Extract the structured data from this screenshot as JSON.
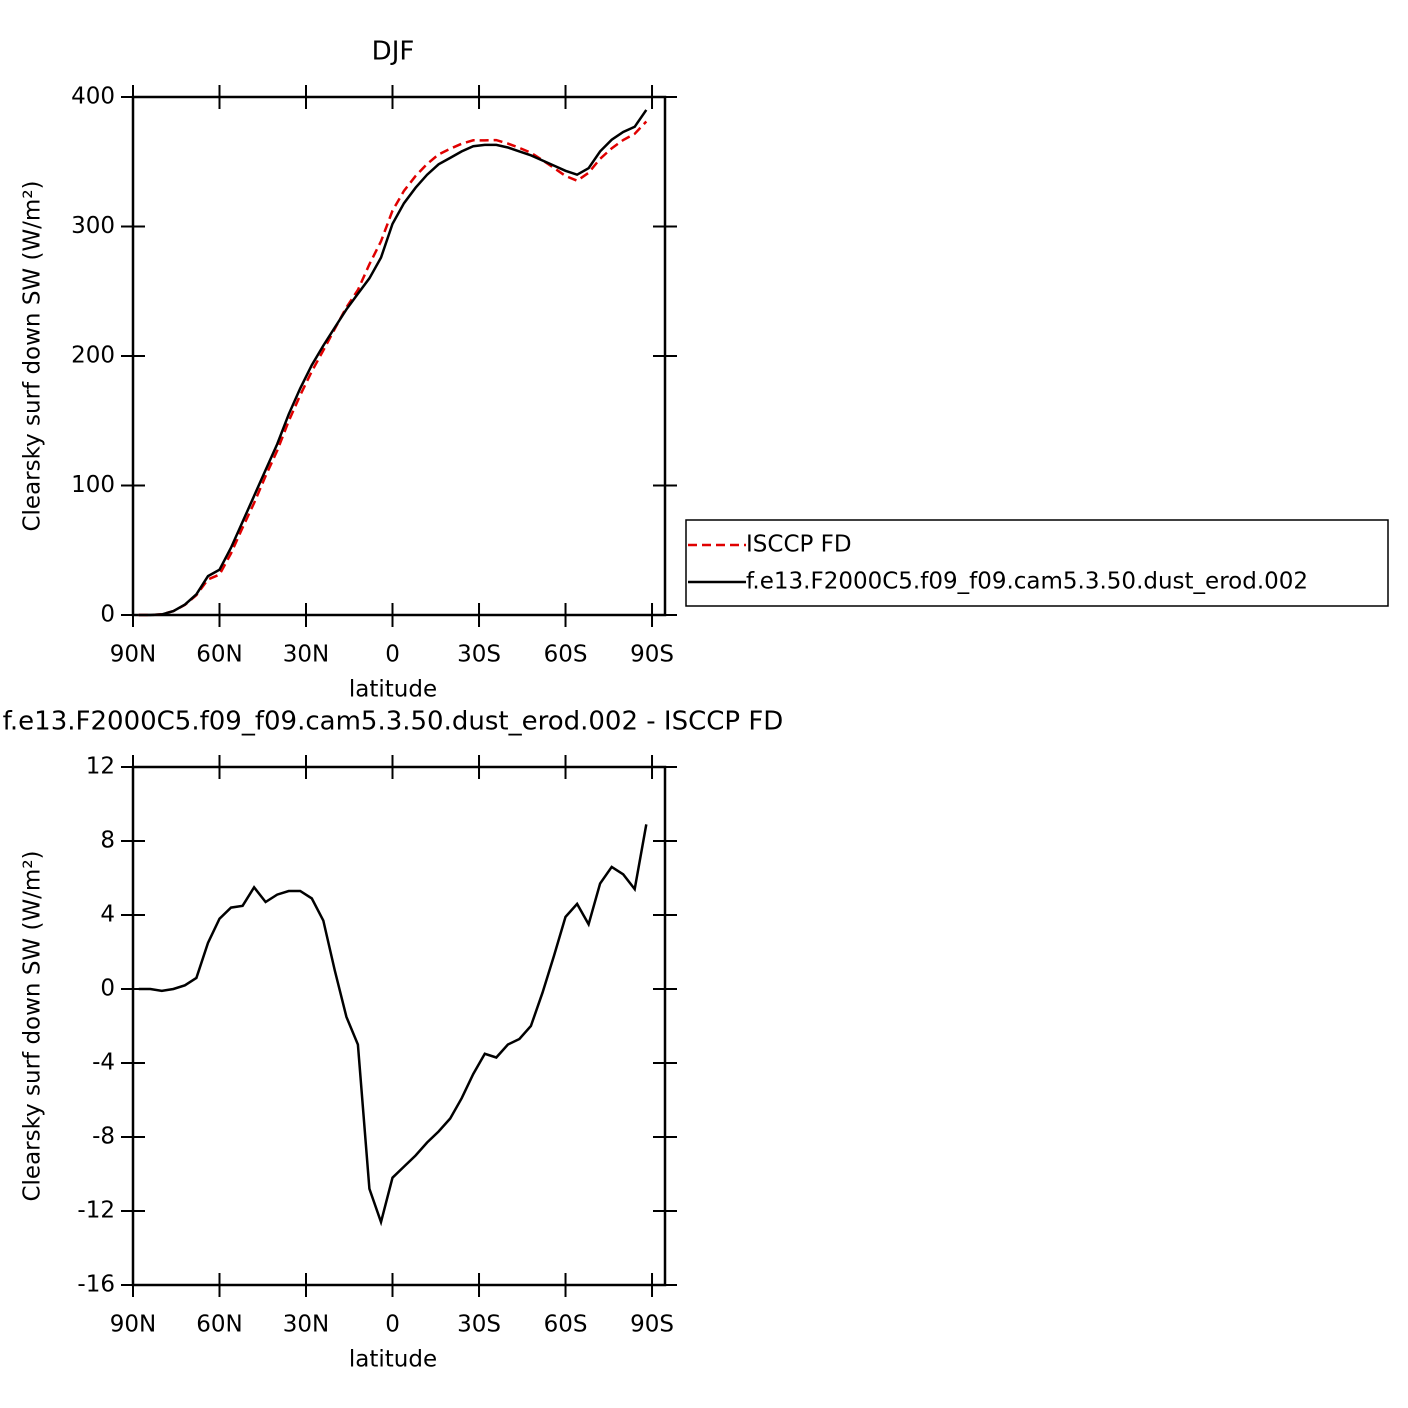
{
  "chart_data": [
    {
      "type": "line",
      "title": "DJF",
      "xlabel": "latitude",
      "ylabel": "Clearsky surf down SW (W/m²)",
      "x": [
        -88,
        -84,
        -80,
        -76,
        -72,
        -68,
        -64,
        -60,
        -56,
        -52,
        -48,
        -44,
        -40,
        -36,
        -32,
        -28,
        -24,
        -20,
        -16,
        -12,
        -8,
        -4,
        0,
        4,
        8,
        12,
        16,
        20,
        24,
        28,
        32,
        36,
        40,
        44,
        48,
        52,
        56,
        60,
        64,
        68,
        72,
        76,
        80,
        84,
        88
      ],
      "series": [
        {
          "name": "ISCCP FD",
          "color": "#e00000",
          "style": "dashed",
          "values": [
            0,
            0,
            0.6,
            3,
            7.8,
            15.4,
            27.5,
            31.2,
            47.6,
            67.5,
            86.5,
            107.3,
            126.9,
            149.7,
            169.7,
            188.1,
            204.3,
            221,
            237.5,
            251,
            270.8,
            288.6,
            312.2,
            327.6,
            339,
            348.3,
            355.7,
            360,
            363.9,
            366.6,
            366.5,
            366.7,
            364,
            360.7,
            357,
            351.2,
            345.2,
            339.1,
            335.4,
            341.5,
            352.3,
            360.4,
            366.8,
            371.6,
            381.1
          ]
        },
        {
          "name": "f.e13.F2000C5.f09_f09.cam5.3.50.dust_erod.002",
          "color": "#000000",
          "style": "solid",
          "values": [
            0,
            0,
            0.5,
            3,
            8,
            16,
            30,
            35,
            52,
            72,
            92,
            112,
            132,
            155,
            175,
            193,
            208,
            222,
            236,
            248,
            260,
            276,
            302,
            318,
            330,
            340,
            348,
            353,
            358,
            362,
            363,
            363,
            361,
            358,
            355,
            351,
            347,
            343,
            340,
            345,
            358,
            367,
            373,
            377,
            390
          ]
        }
      ],
      "xlim": [
        -90,
        94.5
      ],
      "xticks": [
        {
          "value": -90,
          "label": "90N"
        },
        {
          "value": -60,
          "label": "60N"
        },
        {
          "value": -30,
          "label": "30N"
        },
        0,
        {
          "value": 30,
          "label": "30S"
        },
        {
          "value": 60,
          "label": "60S"
        },
        {
          "value": 90,
          "label": "90S"
        }
      ],
      "ylim": [
        0,
        400
      ],
      "yticks": [
        0,
        100,
        200,
        300,
        400
      ],
      "legend": "right"
    },
    {
      "type": "line",
      "title": "f.e13.F2000C5.f09_f09.cam5.3.50.dust_erod.002 - ISCCP FD",
      "xlabel": "latitude",
      "ylabel": "Clearsky surf down SW (W/m²)",
      "x": [
        -88,
        -84,
        -80,
        -76,
        -72,
        -68,
        -64,
        -60,
        -56,
        -52,
        -48,
        -44,
        -40,
        -36,
        -32,
        -28,
        -24,
        -20,
        -16,
        -12,
        -8,
        -4,
        0,
        4,
        8,
        12,
        16,
        20,
        24,
        28,
        32,
        36,
        40,
        44,
        48,
        52,
        56,
        60,
        64,
        68,
        72,
        76,
        80,
        84,
        88
      ],
      "series": [
        {
          "color": "#000000",
          "style": "solid",
          "values": [
            0,
            0,
            -0.1,
            0,
            0.2,
            0.6,
            2.5,
            3.8,
            4.4,
            4.5,
            5.5,
            4.7,
            5.1,
            5.3,
            5.3,
            4.9,
            3.7,
            1,
            -1.5,
            -3,
            -10.8,
            -12.6,
            -10.2,
            -9.6,
            -9,
            -8.3,
            -7.7,
            -7,
            -5.9,
            -4.6,
            -3.5,
            -3.7,
            -3,
            -2.7,
            -2,
            -0.2,
            1.8,
            3.9,
            4.6,
            3.5,
            5.7,
            6.6,
            6.2,
            5.4,
            8.9
          ]
        }
      ],
      "xlim": [
        -90,
        94.5
      ],
      "xticks": [
        {
          "value": -90,
          "label": "90N"
        },
        {
          "value": -60,
          "label": "60N"
        },
        {
          "value": -30,
          "label": "30N"
        },
        0,
        {
          "value": 30,
          "label": "30S"
        },
        {
          "value": 60,
          "label": "60S"
        },
        {
          "value": 90,
          "label": "90S"
        }
      ],
      "ylim": [
        -16,
        12
      ],
      "yticks": [
        -16,
        -12,
        -8,
        -4,
        0,
        4,
        8,
        12
      ]
    }
  ]
}
